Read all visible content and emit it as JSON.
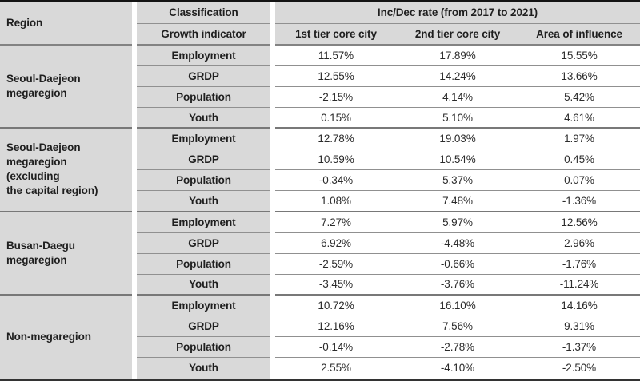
{
  "header": {
    "region": "Region",
    "classification": "Classification",
    "growth_indicator": "Growth indicator",
    "rate_title": "Inc/Dec rate (from 2017 to 2021)",
    "tier_columns": [
      "1st tier core city",
      "2nd tier core city",
      "Area of influence"
    ]
  },
  "colors": {
    "table_gray": "#d9d9d9",
    "row_line": "#909090",
    "group_line": "#787878",
    "outer_top": "#141414",
    "outer_bottom": "#333333"
  },
  "groups": [
    {
      "region": "Seoul-Daejeon\nmegaregion",
      "rows": [
        {
          "indicator": "Employment",
          "values": [
            "11.57%",
            "17.89%",
            "15.55%"
          ]
        },
        {
          "indicator": "GRDP",
          "values": [
            "12.55%",
            "14.24%",
            "13.66%"
          ]
        },
        {
          "indicator": "Population",
          "values": [
            "-2.15%",
            "4.14%",
            "5.42%"
          ]
        },
        {
          "indicator": "Youth",
          "values": [
            "0.15%",
            "5.10%",
            "4.61%"
          ]
        }
      ]
    },
    {
      "region": "Seoul-Daejeon\nmegaregion\n(excluding\nthe capital region)",
      "rows": [
        {
          "indicator": "Employment",
          "values": [
            "12.78%",
            "19.03%",
            "1.97%"
          ]
        },
        {
          "indicator": "GRDP",
          "values": [
            "10.59%",
            "10.54%",
            "0.45%"
          ]
        },
        {
          "indicator": "Population",
          "values": [
            "-0.34%",
            "5.37%",
            "0.07%"
          ]
        },
        {
          "indicator": "Youth",
          "values": [
            "1.08%",
            "7.48%",
            "-1.36%"
          ]
        }
      ]
    },
    {
      "region": "Busan-Daegu\nmegaregion",
      "rows": [
        {
          "indicator": "Employment",
          "values": [
            "7.27%",
            "5.97%",
            "12.56%"
          ]
        },
        {
          "indicator": "GRDP",
          "values": [
            "6.92%",
            "-4.48%",
            "2.96%"
          ]
        },
        {
          "indicator": "Population",
          "values": [
            "-2.59%",
            "-0.66%",
            "-1.76%"
          ]
        },
        {
          "indicator": "Youth",
          "values": [
            "-3.45%",
            "-3.76%",
            "-11.24%"
          ]
        }
      ]
    },
    {
      "region": "Non-megaregion",
      "rows": [
        {
          "indicator": "Employment",
          "values": [
            "10.72%",
            "16.10%",
            "14.16%"
          ]
        },
        {
          "indicator": "GRDP",
          "values": [
            "12.16%",
            "7.56%",
            "9.31%"
          ]
        },
        {
          "indicator": "Population",
          "values": [
            "-0.14%",
            "-2.78%",
            "-1.37%"
          ]
        },
        {
          "indicator": "Youth",
          "values": [
            "2.55%",
            "-4.10%",
            "-2.50%"
          ]
        }
      ]
    }
  ]
}
